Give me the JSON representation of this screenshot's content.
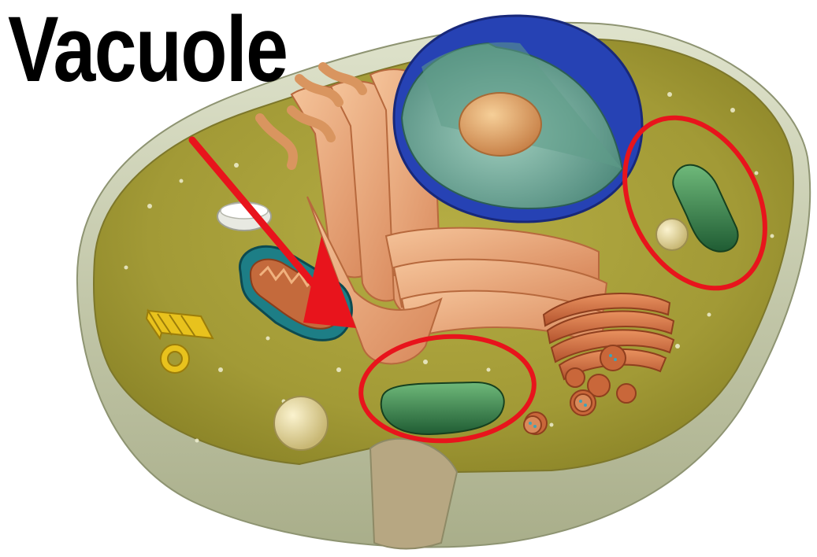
{
  "title": "Vacuole",
  "colors": {
    "title_text": "#000000",
    "cytoplasm": "#a8a23a",
    "membrane_rim": "#c9ceb0",
    "nucleus_envelope": "#1f3fb0",
    "nucleoplasm": "#6fa89a",
    "nucleolus": "#e0a566",
    "endoplasmic_reticulum": "#e6a274",
    "golgi": "#d9774a",
    "mitochondrion_outer": "#1d7e86",
    "vacuole_green": "#2f7a45",
    "annotation_red": "#e8141c"
  },
  "annotations": {
    "arrow_target": "mitochondrion",
    "circled_structures": [
      "green-organelle-left",
      "green-organelle-right"
    ]
  }
}
